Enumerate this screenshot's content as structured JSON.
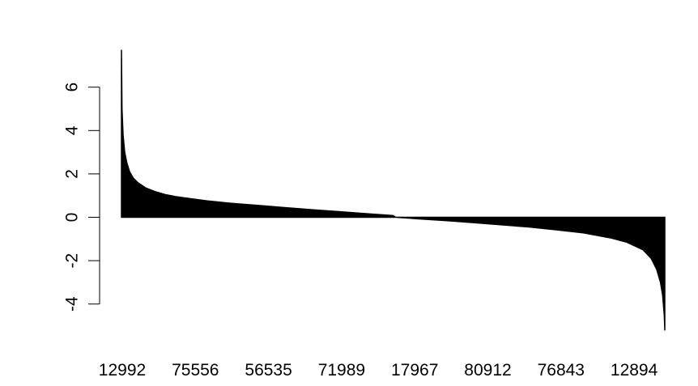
{
  "chart_data": {
    "type": "bar",
    "title": "",
    "xlabel": "",
    "ylabel": "",
    "ylim": [
      -5.2,
      7.7
    ],
    "yticks": [
      -4,
      -2,
      0,
      2,
      4,
      6
    ],
    "ytick_labels": [
      "-4",
      "-2",
      "0",
      "2",
      "4",
      "6"
    ],
    "categories": [
      "12992",
      "75556",
      "56535",
      "71989",
      "17967",
      "80912",
      "76843",
      "12894"
    ],
    "first_value": 7.7,
    "last_value": -5.2,
    "profile": [
      [
        0.0,
        7.7
      ],
      [
        0.001,
        5.0
      ],
      [
        0.003,
        3.8
      ],
      [
        0.006,
        3.0
      ],
      [
        0.01,
        2.5
      ],
      [
        0.015,
        2.1
      ],
      [
        0.022,
        1.8
      ],
      [
        0.03,
        1.6
      ],
      [
        0.045,
        1.35
      ],
      [
        0.06,
        1.2
      ],
      [
        0.08,
        1.05
      ],
      [
        0.1,
        0.95
      ],
      [
        0.13,
        0.85
      ],
      [
        0.16,
        0.75
      ],
      [
        0.2,
        0.65
      ],
      [
        0.25,
        0.55
      ],
      [
        0.3,
        0.45
      ],
      [
        0.35,
        0.35
      ],
      [
        0.4,
        0.26
      ],
      [
        0.45,
        0.17
      ],
      [
        0.5,
        0.08
      ],
      [
        0.505,
        0.0
      ],
      [
        0.55,
        -0.08
      ],
      [
        0.6,
        -0.16
      ],
      [
        0.65,
        -0.25
      ],
      [
        0.7,
        -0.35
      ],
      [
        0.75,
        -0.45
      ],
      [
        0.8,
        -0.58
      ],
      [
        0.85,
        -0.72
      ],
      [
        0.9,
        -0.95
      ],
      [
        0.93,
        -1.15
      ],
      [
        0.96,
        -1.5
      ],
      [
        0.975,
        -1.9
      ],
      [
        0.985,
        -2.4
      ],
      [
        0.992,
        -3.0
      ],
      [
        0.996,
        -3.6
      ],
      [
        0.999,
        -4.5
      ],
      [
        1.0,
        -5.2
      ]
    ],
    "bar_color": "#000000"
  }
}
